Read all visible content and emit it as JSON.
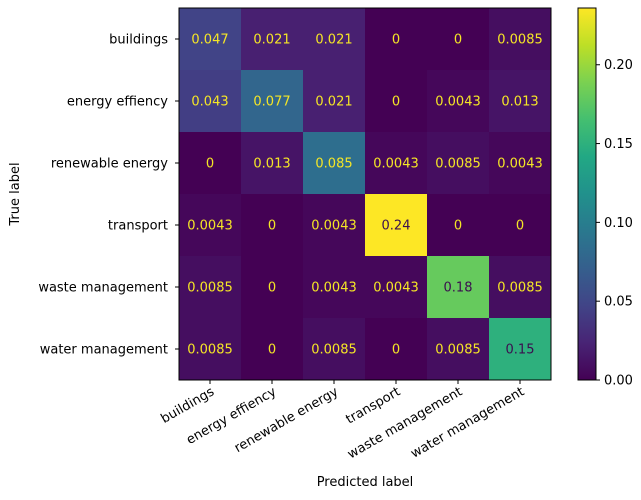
{
  "chart_data": {
    "type": "heatmap",
    "title": "",
    "xlabel": "Predicted label",
    "ylabel": "True label",
    "x_categories": [
      "buildings",
      "energy effiency",
      "renewable energy",
      "transport",
      "waste management",
      "water management"
    ],
    "y_categories": [
      "buildings",
      "energy effiency",
      "renewable energy",
      "transport",
      "waste management",
      "water management"
    ],
    "values": [
      [
        0.047,
        0.021,
        0.021,
        0,
        0,
        0.0085
      ],
      [
        0.043,
        0.077,
        0.021,
        0,
        0.0043,
        0.013
      ],
      [
        0,
        0.013,
        0.085,
        0.0043,
        0.0085,
        0.0043
      ],
      [
        0.0043,
        0,
        0.0043,
        0.24,
        0,
        0
      ],
      [
        0.0085,
        0,
        0.0043,
        0.0043,
        0.18,
        0.0085
      ],
      [
        0.0085,
        0,
        0.0085,
        0,
        0.0085,
        0.15
      ]
    ],
    "cell_labels": [
      [
        "0.047",
        "0.021",
        "0.021",
        "0",
        "0",
        "0.0085"
      ],
      [
        "0.043",
        "0.077",
        "0.021",
        "0",
        "0.0043",
        "0.013"
      ],
      [
        "0",
        "0.013",
        "0.085",
        "0.0043",
        "0.0085",
        "0.0043"
      ],
      [
        "0.0043",
        "0",
        "0.0043",
        "0.24",
        "0",
        "0"
      ],
      [
        "0.0085",
        "0",
        "0.0043",
        "0.0043",
        "0.18",
        "0.0085"
      ],
      [
        "0.0085",
        "0",
        "0.0085",
        "0",
        "0.0085",
        "0.15"
      ]
    ],
    "colormap": "viridis",
    "value_range": [
      0,
      0.236
    ],
    "colorbar": {
      "ticks": [
        0,
        0.05,
        0.1,
        0.15,
        0.2
      ],
      "tick_labels": [
        "0.00",
        "0.05",
        "0.10",
        "0.15",
        "0.20"
      ]
    },
    "label_colors": {
      "on_dark": "#f5e626",
      "on_light": "#3b0f4f"
    },
    "grid": false
  }
}
